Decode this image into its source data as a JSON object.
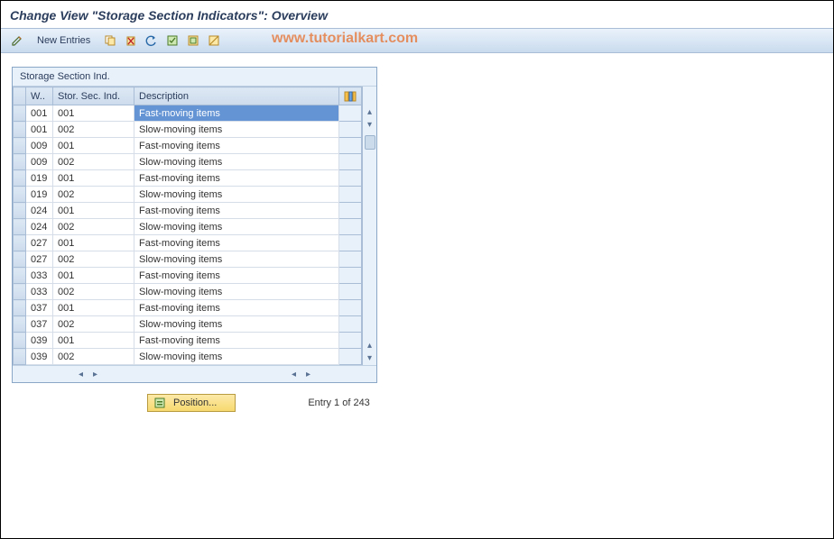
{
  "title": "Change View \"Storage Section Indicators\": Overview",
  "toolbar": {
    "new_entries_label": "New Entries"
  },
  "watermark": "www.tutorialkart.com",
  "table": {
    "title": "Storage Section Ind.",
    "columns": {
      "whn": "W..",
      "ssi": "Stor. Sec. Ind.",
      "desc": "Description"
    },
    "rows": [
      {
        "whn": "001",
        "ssi": "001",
        "desc": "Fast-moving items",
        "selected": true
      },
      {
        "whn": "001",
        "ssi": "002",
        "desc": "Slow-moving items"
      },
      {
        "whn": "009",
        "ssi": "001",
        "desc": "Fast-moving items"
      },
      {
        "whn": "009",
        "ssi": "002",
        "desc": "Slow-moving items"
      },
      {
        "whn": "019",
        "ssi": "001",
        "desc": "Fast-moving items"
      },
      {
        "whn": "019",
        "ssi": "002",
        "desc": "Slow-moving items"
      },
      {
        "whn": "024",
        "ssi": "001",
        "desc": "Fast-moving items"
      },
      {
        "whn": "024",
        "ssi": "002",
        "desc": "Slow-moving items"
      },
      {
        "whn": "027",
        "ssi": "001",
        "desc": "Fast-moving items"
      },
      {
        "whn": "027",
        "ssi": "002",
        "desc": "Slow-moving items"
      },
      {
        "whn": "033",
        "ssi": "001",
        "desc": "Fast-moving items"
      },
      {
        "whn": "033",
        "ssi": "002",
        "desc": "Slow-moving items"
      },
      {
        "whn": "037",
        "ssi": "001",
        "desc": "Fast-moving items"
      },
      {
        "whn": "037",
        "ssi": "002",
        "desc": "Slow-moving items"
      },
      {
        "whn": "039",
        "ssi": "001",
        "desc": "Fast-moving items"
      },
      {
        "whn": "039",
        "ssi": "002",
        "desc": "Slow-moving items"
      }
    ]
  },
  "footer": {
    "position_label": "Position...",
    "entry_text": "Entry 1 of 243"
  },
  "colors": {
    "toolbar_grad_top": "#eaf2fb",
    "toolbar_grad_bot": "#c9dbee",
    "border": "#a9bed6",
    "header_text": "#2b3d5c",
    "select_bg": "#6494d4",
    "watermark": "#e86820",
    "position_bg_top": "#fce9a8",
    "position_bg_bot": "#f7d96f"
  }
}
